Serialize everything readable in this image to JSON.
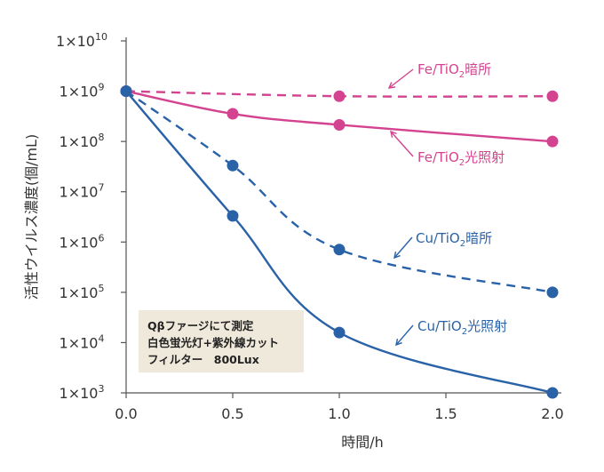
{
  "chart_data": {
    "type": "line",
    "title": "",
    "xlabel": "時間/h",
    "ylabel": "活性ウイルス濃度(個/mL)",
    "xlim": [
      -0.05,
      2.0
    ],
    "yscale": "log",
    "ylim_exp": [
      3,
      10
    ],
    "x_ticks": [
      "0.0",
      "0.5",
      "1.0",
      "1.5",
      "2.0"
    ],
    "y_ticks": [
      {
        "base": "1×10",
        "exp": "10"
      },
      {
        "base": "1×10",
        "exp": "9"
      },
      {
        "base": "1×10",
        "exp": "8"
      },
      {
        "base": "1×10",
        "exp": "7"
      },
      {
        "base": "1×10",
        "exp": "6"
      },
      {
        "base": "1×10",
        "exp": "5"
      },
      {
        "base": "1×10",
        "exp": "4"
      },
      {
        "base": "1×10",
        "exp": "3"
      }
    ],
    "series": [
      {
        "name": "Fe/TiO₂暗所",
        "name_main": "Fe/TiO",
        "name_sub": "2",
        "name_tail": "暗所",
        "color": "#d4438f",
        "dashed": true,
        "x": [
          0,
          1.0,
          2.0
        ],
        "log10": [
          9.0,
          8.9,
          8.9
        ]
      },
      {
        "name": "Fe/TiO₂光照射",
        "name_main": "Fe/TiO",
        "name_sub": "2",
        "name_tail": "光照射",
        "color": "#d4438f",
        "dashed": false,
        "x": [
          0,
          0.5,
          1.0,
          2.0
        ],
        "log10": [
          9.0,
          8.55,
          8.33,
          8.0
        ]
      },
      {
        "name": "Cu/TiO₂暗所",
        "name_main": "Cu/TiO",
        "name_sub": "2",
        "name_tail": "暗所",
        "color": "#2a62a8",
        "dashed": true,
        "x": [
          0,
          0.5,
          1.0,
          2.0
        ],
        "log10": [
          9.0,
          7.52,
          5.85,
          5.0
        ]
      },
      {
        "name": "Cu/TiO₂光照射",
        "name_main": "Cu/TiO",
        "name_sub": "2",
        "name_tail": "光照射",
        "color": "#2a62a8",
        "dashed": false,
        "x": [
          0,
          0.5,
          1.0,
          2.0
        ],
        "log10": [
          9.0,
          6.52,
          4.2,
          3.0
        ]
      }
    ],
    "note": [
      "Qβファージにて測定",
      "白色蛍光灯+紫外線カット",
      "フィルター　800Lux"
    ]
  }
}
